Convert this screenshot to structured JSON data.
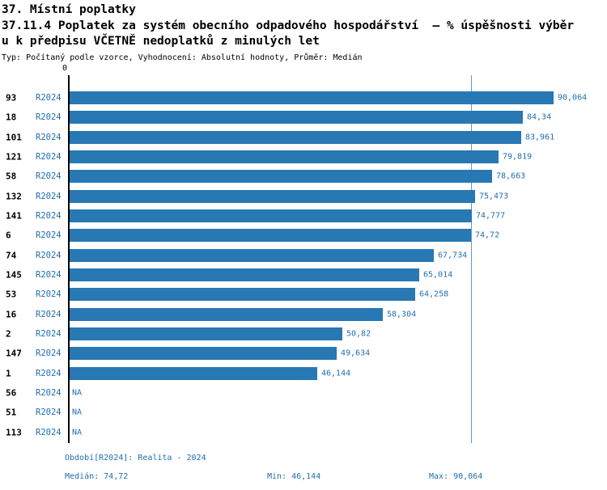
{
  "header": {
    "title": "37. Místní poplatky",
    "subtitle_line1": "37.11.4 Poplatek za systém obecního odpadového hospodářství  – % úspěšnosti výběr",
    "subtitle_line2": "u k předpisu VČETNĚ nedoplatků z minulých let",
    "meta": "Typ: Počítaný podle vzorce, Vyhodnocení: Absolutní hodnoty, Průměr: Medián"
  },
  "chart_data": {
    "type": "bar",
    "orientation": "horizontal",
    "title": "37.11.4 Poplatek za systém obecního odpadového hospodářství – % úspěšnosti výběru k předpisu VČETNĚ nedoplatků z minulých let",
    "series_label": "R2024",
    "na_label": "NA",
    "axis_zero_label": "0",
    "xlim": [
      0,
      100
    ],
    "median": 74.72,
    "bar_color": "#2878b4",
    "legend": "none",
    "grid": "off",
    "rows": [
      {
        "id": "93",
        "value": 90.064,
        "label": "90,064"
      },
      {
        "id": "18",
        "value": 84.34,
        "label": "84,34"
      },
      {
        "id": "101",
        "value": 83.961,
        "label": "83,961"
      },
      {
        "id": "121",
        "value": 79.819,
        "label": "79,819"
      },
      {
        "id": "58",
        "value": 78.663,
        "label": "78,663"
      },
      {
        "id": "132",
        "value": 75.473,
        "label": "75,473"
      },
      {
        "id": "141",
        "value": 74.777,
        "label": "74,777"
      },
      {
        "id": "6",
        "value": 74.72,
        "label": "74,72"
      },
      {
        "id": "74",
        "value": 67.734,
        "label": "67,734"
      },
      {
        "id": "145",
        "value": 65.014,
        "label": "65,014"
      },
      {
        "id": "53",
        "value": 64.258,
        "label": "64,258"
      },
      {
        "id": "16",
        "value": 58.304,
        "label": "58,304"
      },
      {
        "id": "2",
        "value": 50.82,
        "label": "50,82"
      },
      {
        "id": "147",
        "value": 49.634,
        "label": "49,634"
      },
      {
        "id": "1",
        "value": 46.144,
        "label": "46,144"
      },
      {
        "id": "56",
        "value": null,
        "label": "NA"
      },
      {
        "id": "51",
        "value": null,
        "label": "NA"
      },
      {
        "id": "113",
        "value": null,
        "label": "NA"
      }
    ]
  },
  "footer": {
    "period": "Období[R2024]: Realita - 2024",
    "median": "Medián: 74,72",
    "min": "Min: 46,144",
    "max": "Max: 90,064"
  }
}
